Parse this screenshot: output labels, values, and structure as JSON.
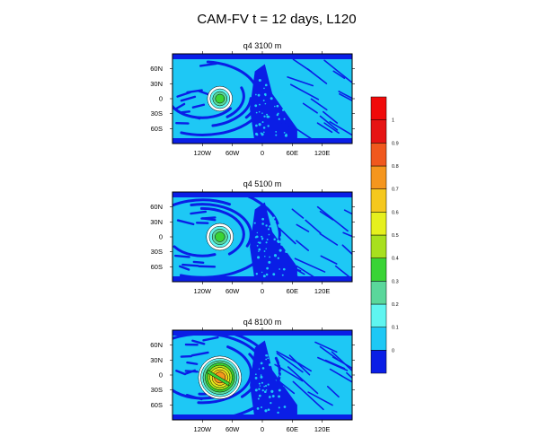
{
  "figure": {
    "title": "CAM-FV t = 12 days, L120"
  },
  "chart_data": {
    "type": "heatmap",
    "title": "CAM-FV t = 12 days, L120",
    "xlim": [
      -180,
      180
    ],
    "ylim": [
      -90,
      90
    ],
    "grid": false,
    "legend_placement": "right",
    "x_ticks": [
      -120,
      -60,
      0,
      60,
      120
    ],
    "x_tick_labels": [
      "120W",
      "60W",
      "0",
      "60E",
      "120E"
    ],
    "y_ticks": [
      60,
      30,
      0,
      -30,
      -60
    ],
    "y_tick_labels": [
      "60N",
      "30N",
      "0",
      "30S",
      "60S"
    ],
    "panels": [
      {
        "title": "q4 3100 m",
        "blob": {
          "center_lon": -85,
          "center_lat": 0,
          "radius_deg": 25,
          "max_value": 0.3
        }
      },
      {
        "title": "q4 5100 m",
        "blob": {
          "center_lon": -85,
          "center_lat": 0,
          "radius_deg": 27,
          "max_value": 0.3
        }
      },
      {
        "title": "q4 8100 m",
        "blob": {
          "center_lon": -85,
          "center_lat": -5,
          "radius_deg": 43,
          "max_value": 0.7
        }
      }
    ],
    "colorbar": {
      "levels": [
        0,
        0.1,
        0.2,
        0.3,
        0.4,
        0.5,
        0.6,
        0.7,
        0.8,
        0.9,
        1
      ],
      "labels": [
        "0",
        "0.1",
        "0.2",
        "0.3",
        "0.4",
        "0.5",
        "0.6",
        "0.7",
        "0.8",
        "0.9",
        "1"
      ],
      "colors": [
        "#0a1ee6",
        "#1ec8f5",
        "#5ff5f0",
        "#5ad79b",
        "#39d435",
        "#a8e01e",
        "#e6f01e",
        "#f5c81e",
        "#f5961e",
        "#f0581e",
        "#e61414",
        "#f00a0a"
      ]
    }
  }
}
